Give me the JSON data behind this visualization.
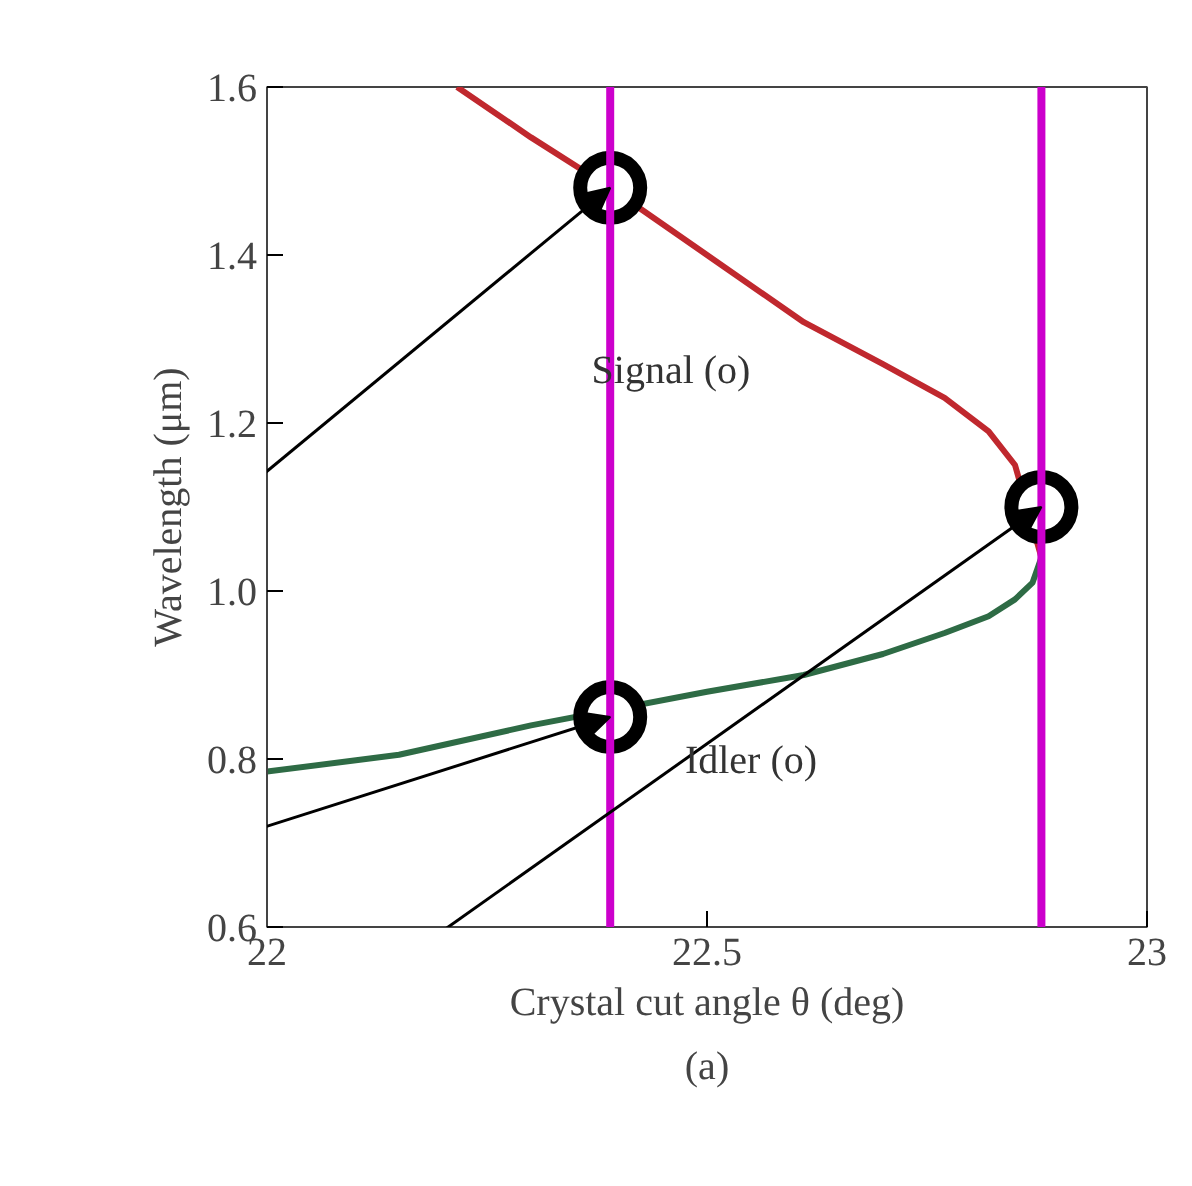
{
  "chart_data": {
    "type": "line",
    "xlabel": "Crystal cut angle θ (deg)",
    "ylabel": "Wavelength (μm)",
    "xlim": [
      22,
      23
    ],
    "ylim": [
      0.6,
      1.6
    ],
    "xticks": [
      22,
      22.5,
      23
    ],
    "yticks": [
      {
        "value": 0.6,
        "label": "0.6"
      },
      {
        "value": 0.8,
        "label": "0.8"
      },
      {
        "value": 1,
        "label": "1.0"
      },
      {
        "value": 1.2,
        "label": "1.2"
      },
      {
        "value": 1.4,
        "label": "1.4"
      },
      {
        "value": 1.6,
        "label": "1.6"
      }
    ],
    "grid": false,
    "marker": "none",
    "line_style": "solid",
    "series": [
      {
        "color": "#c0282e",
        "x": [
          22.216,
          22.3,
          22.39,
          22.5,
          22.61,
          22.7,
          22.77,
          22.82,
          22.85,
          22.88
        ],
        "values": [
          1.6,
          1.54,
          1.48,
          1.4,
          1.32,
          1.27,
          1.23,
          1.19,
          1.15,
          1.04
        ]
      },
      {
        "color": "#2e6b45",
        "x": [
          22.0,
          22.15,
          22.3,
          22.5,
          22.61,
          22.7,
          22.77,
          22.82,
          22.85,
          22.87,
          22.88
        ],
        "values": [
          0.785,
          0.805,
          0.84,
          0.88,
          0.9,
          0.925,
          0.95,
          0.97,
          0.99,
          1.01,
          1.04
        ]
      },
      {
        "type": "scatter",
        "marker": "circle",
        "color": "#000000",
        "x": [
          22.39,
          22.39,
          22.88
        ],
        "values": [
          1.48,
          0.85,
          1.1
        ]
      }
    ],
    "ref_lines": [
      {
        "axis": "x",
        "value": 22.39,
        "color": "#cc00cc"
      },
      {
        "axis": "x",
        "value": 22.88,
        "color": "#cc00cc"
      }
    ],
    "annotations": [
      "Signal (o)",
      "Idler (o)",
      "(a)"
    ]
  }
}
